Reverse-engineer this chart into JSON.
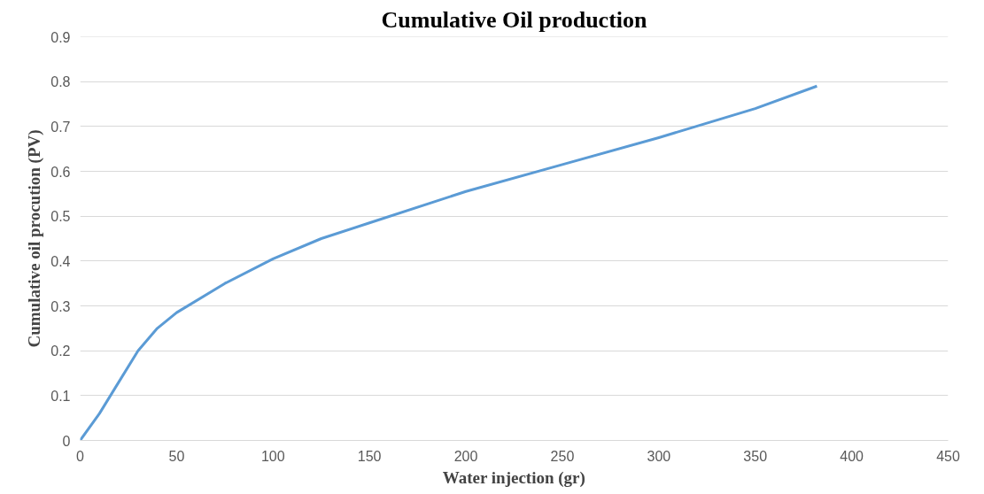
{
  "chart_data": {
    "type": "line",
    "title": "Cumulative Oil production",
    "xlabel": "Water injection (gr)",
    "ylabel": "Cumulative oil procution (PV)",
    "x": [
      0,
      10,
      20,
      30,
      40,
      50,
      75,
      100,
      125,
      150,
      200,
      250,
      300,
      350,
      382
    ],
    "series": [
      {
        "color": "#5b9bd5",
        "values": [
          0,
          0.06,
          0.13,
          0.2,
          0.25,
          0.285,
          0.35,
          0.405,
          0.45,
          0.485,
          0.555,
          0.615,
          0.675,
          0.74,
          0.79
        ]
      }
    ],
    "xlim": [
      0,
      450
    ],
    "xticks": [
      0,
      50,
      100,
      150,
      200,
      250,
      300,
      350,
      400,
      450
    ],
    "ylim": [
      0,
      0.9
    ],
    "yticks": [
      0,
      0.1,
      0.2,
      0.3,
      0.4,
      0.5,
      0.6,
      0.7,
      0.8,
      0.9
    ],
    "grid": "y",
    "marker": "none",
    "line_style": "solid"
  }
}
